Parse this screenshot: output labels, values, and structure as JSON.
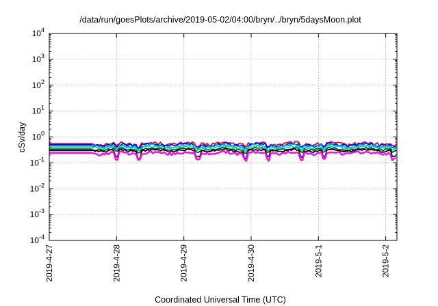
{
  "chart_data": {
    "type": "line",
    "title": "/data/run/goesPlots/archive/2019-05-02/04:00/bryn/../bryn/5daysMoon.plot",
    "xlabel": "Coordinated Universal Time (UTC)",
    "ylabel": "cSv/day",
    "y_scale": "log",
    "ylim": [
      0.0001,
      10000
    ],
    "y_ticks": [
      {
        "base": "10",
        "exp": "4"
      },
      {
        "base": "10",
        "exp": "3"
      },
      {
        "base": "10",
        "exp": "2"
      },
      {
        "base": "10",
        "exp": "1"
      },
      {
        "base": "10",
        "exp": "0"
      },
      {
        "base": "10",
        "exp": "-1"
      },
      {
        "base": "10",
        "exp": "-2"
      },
      {
        "base": "10",
        "exp": "-3"
      },
      {
        "base": "10",
        "exp": "-4"
      }
    ],
    "xlim": [
      "2019-04-27T00:00",
      "2019-05-02T04:00"
    ],
    "x_ticks": [
      "2019-4-27",
      "2019-4-28",
      "2019-4-29",
      "2019-4-30",
      "2019-5-1",
      "2019-5-2"
    ],
    "grid": true,
    "legend": "none",
    "flat_until": "2019-04-27T15:00",
    "series": [
      {
        "color": "#ff0000",
        "baseline": 0.55,
        "ripple": 0.13
      },
      {
        "color": "#0000ff",
        "baseline": 0.5,
        "ripple": 0.13
      },
      {
        "color": "#00a0ff",
        "baseline": 0.45,
        "ripple": 0.12
      },
      {
        "color": "#00e0c0",
        "baseline": 0.4,
        "ripple": 0.1
      },
      {
        "color": "#006400",
        "baseline": 0.34,
        "ripple": 0.08
      },
      {
        "color": "#000000",
        "baseline": 0.3,
        "ripple": 0.08
      },
      {
        "color": "#ff00ff",
        "baseline": 0.24,
        "ripple": 0.12
      }
    ],
    "dips": [
      "2019-04-28T00:00",
      "2019-04-28T08:00",
      "2019-04-29T05:00",
      "2019-04-29T22:00",
      "2019-04-30T06:00",
      "2019-04-30T18:00",
      "2019-05-01T02:00",
      "2019-05-02T03:00"
    ]
  }
}
